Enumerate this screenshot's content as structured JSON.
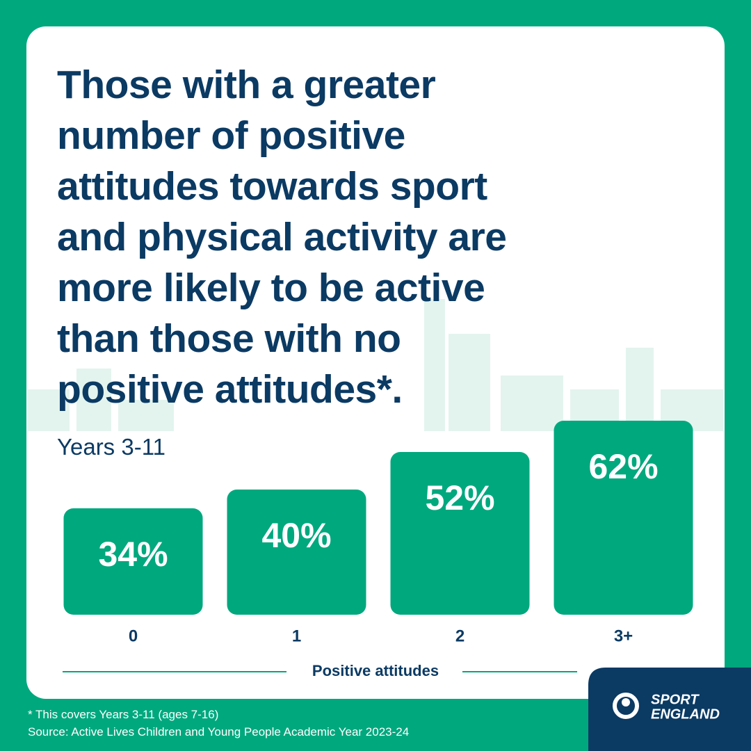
{
  "chart_data": {
    "type": "bar",
    "title": "Those with a greater number of positive attitudes towards sport and physical activity are more likely to be active than those with no positive attitudes*.",
    "subtitle": "Years 3-11",
    "x_label": "Positive attitudes",
    "categories": [
      "0",
      "1",
      "2",
      "3+"
    ],
    "values": [
      34,
      40,
      52,
      62
    ],
    "value_labels": [
      "34%",
      "40%",
      "52%",
      "62%"
    ],
    "color": "#00a87e"
  },
  "footnote": "*  This covers Years 3-11 (ages 7-16)",
  "source": "Source: Active Lives Children and Young People Academic Year 2023-24",
  "logo": [
    "SPORT",
    "ENGLAND"
  ]
}
